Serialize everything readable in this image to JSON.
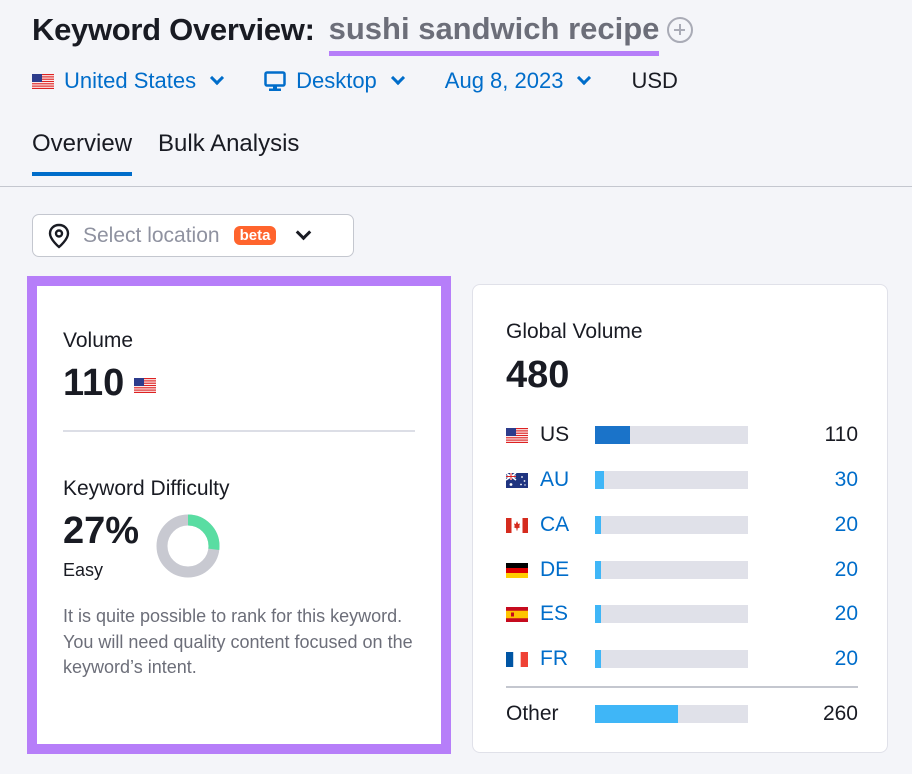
{
  "header": {
    "title": "Keyword Overview:",
    "keyword": "sushi sandwich recipe"
  },
  "filters": {
    "country": "United States",
    "device": "Desktop",
    "date": "Aug 8, 2023",
    "currency": "USD"
  },
  "tabs": [
    {
      "label": "Overview",
      "active": true
    },
    {
      "label": "Bulk Analysis",
      "active": false
    }
  ],
  "location_select": {
    "placeholder": "Select location",
    "badge": "beta"
  },
  "volume": {
    "label": "Volume",
    "value": "110"
  },
  "keyword_difficulty": {
    "label": "Keyword Difficulty",
    "value": "27%",
    "percent": 27,
    "rating": "Easy",
    "description": "It is quite possible to rank for this keyword. You will need quality content focused on the keyword’s intent.",
    "colors": {
      "filled": "#59dda2",
      "empty": "#c8c9d1"
    }
  },
  "global_volume": {
    "label": "Global Volume",
    "value": "480",
    "countries": [
      {
        "code": "US",
        "value": "110",
        "share": 0.23,
        "link": false,
        "flag": "us-flag",
        "bar_color": "#1a73c9"
      },
      {
        "code": "AU",
        "value": "30",
        "share": 0.06,
        "link": true,
        "flag": "au-flag",
        "bar_color": "#3fb6f7"
      },
      {
        "code": "CA",
        "value": "20",
        "share": 0.04,
        "link": true,
        "flag": "ca-flag",
        "bar_color": "#3fb6f7"
      },
      {
        "code": "DE",
        "value": "20",
        "share": 0.04,
        "link": true,
        "flag": "de-flag",
        "bar_color": "#3fb6f7"
      },
      {
        "code": "ES",
        "value": "20",
        "share": 0.04,
        "link": true,
        "flag": "es-flag",
        "bar_color": "#3fb6f7"
      },
      {
        "code": "FR",
        "value": "20",
        "share": 0.04,
        "link": true,
        "flag": "fr-flag",
        "bar_color": "#3fb6f7"
      }
    ],
    "other": {
      "label": "Other",
      "value": "260",
      "share": 0.54,
      "bar_color": "#3fb6f7"
    }
  },
  "colors": {
    "accent": "#006dca",
    "highlight": "#b67ef9",
    "beta": "#ff642d"
  }
}
